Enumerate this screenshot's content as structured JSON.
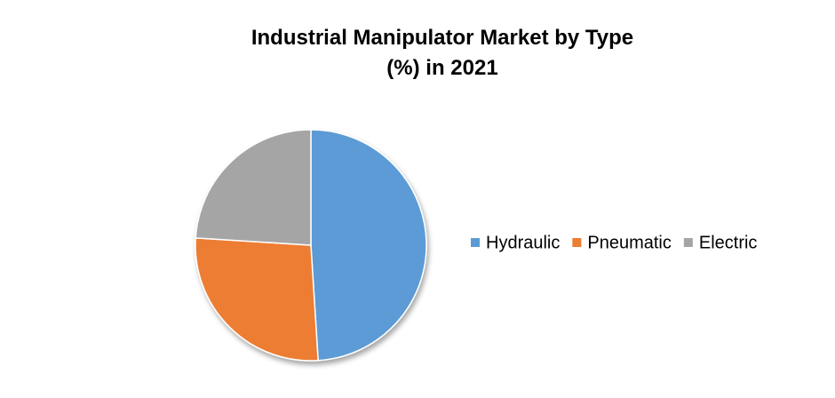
{
  "chart_data": {
    "type": "pie",
    "title": [
      "Industrial Manipulator Market by Type",
      "(%) in 2021"
    ],
    "categories": [
      "Hydraulic",
      "Pneumatic",
      "Electric"
    ],
    "values": [
      49,
      27,
      24
    ],
    "colors": [
      "#5b9bd5",
      "#ed7d31",
      "#a5a5a5"
    ],
    "legend": "right"
  }
}
